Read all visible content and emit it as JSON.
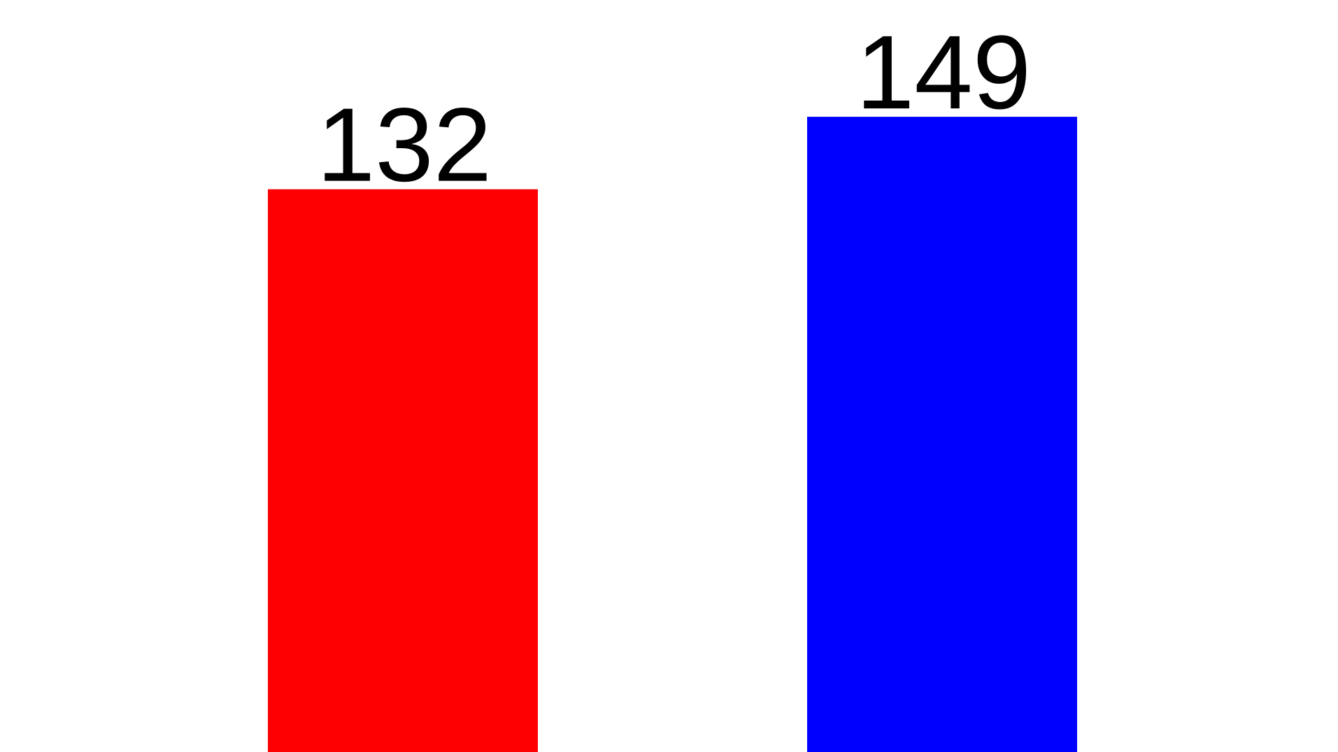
{
  "chart_data": {
    "type": "bar",
    "categories": [
      "",
      ""
    ],
    "values": [
      132,
      149
    ],
    "data_labels": [
      "132",
      "149"
    ],
    "colors": [
      "#ff0000",
      "#0000ff"
    ],
    "title": "",
    "xlabel": "",
    "ylabel": "",
    "grid": false,
    "legend": "none"
  }
}
